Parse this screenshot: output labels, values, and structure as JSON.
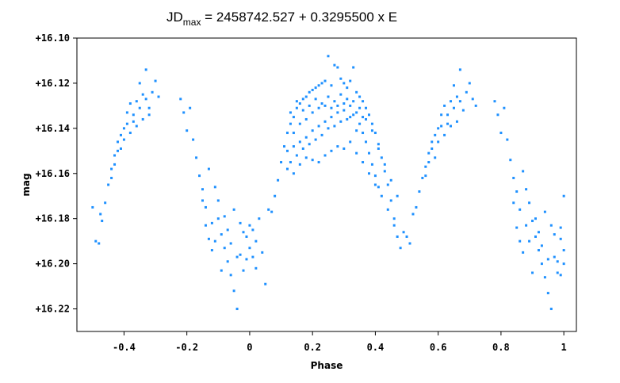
{
  "chart_data": {
    "type": "scatter",
    "title_prefix": "JD",
    "title_subscript": "max",
    "title_rest": " = 2458742.527 + 0.3295500 x E",
    "xlabel": "Phase",
    "ylabel": "mag",
    "xlim": [
      -0.55,
      1.04
    ],
    "ylim": [
      16.23,
      16.1
    ],
    "y_inverted": true,
    "grid": false,
    "point_color": "#1e90ff",
    "x_ticks": [
      {
        "value": -0.4,
        "label": "-0.4"
      },
      {
        "value": -0.2,
        "label": "-0.2"
      },
      {
        "value": 0,
        "label": "0"
      },
      {
        "value": 0.2,
        "label": "0.2"
      },
      {
        "value": 0.4,
        "label": "0.4"
      },
      {
        "value": 0.6,
        "label": "0.6"
      },
      {
        "value": 0.8,
        "label": "0.8"
      },
      {
        "value": 1,
        "label": "1"
      }
    ],
    "y_ticks": [
      {
        "value": 16.1,
        "label": "+16.10"
      },
      {
        "value": 16.12,
        "label": "+16.12"
      },
      {
        "value": 16.14,
        "label": "+16.14"
      },
      {
        "value": 16.16,
        "label": "+16.16"
      },
      {
        "value": 16.18,
        "label": "+16.18"
      },
      {
        "value": 16.2,
        "label": "+16.20"
      },
      {
        "value": 16.22,
        "label": "+16.22"
      }
    ],
    "series": [
      {
        "points": [
          [
            -0.5,
            16.175
          ],
          [
            -0.49,
            16.19
          ],
          [
            -0.48,
            16.191
          ],
          [
            -0.475,
            16.178
          ],
          [
            -0.47,
            16.181
          ],
          [
            -0.46,
            16.173
          ],
          [
            -0.45,
            16.165
          ],
          [
            -0.44,
            16.158
          ],
          [
            -0.43,
            16.152
          ],
          [
            -0.42,
            16.146
          ],
          [
            -0.41,
            16.149
          ],
          [
            -0.4,
            16.14
          ],
          [
            -0.39,
            16.133
          ],
          [
            -0.38,
            16.129
          ],
          [
            -0.37,
            16.137
          ],
          [
            -0.36,
            16.128
          ],
          [
            -0.35,
            16.12
          ],
          [
            -0.34,
            16.125
          ],
          [
            -0.33,
            16.114
          ],
          [
            -0.32,
            16.131
          ],
          [
            -0.31,
            16.124
          ],
          [
            -0.3,
            16.119
          ],
          [
            -0.29,
            16.126
          ],
          [
            -0.44,
            16.162
          ],
          [
            -0.43,
            16.156
          ],
          [
            -0.42,
            16.15
          ],
          [
            -0.41,
            16.143
          ],
          [
            -0.4,
            16.145
          ],
          [
            -0.39,
            16.138
          ],
          [
            -0.38,
            16.142
          ],
          [
            -0.37,
            16.134
          ],
          [
            -0.36,
            16.139
          ],
          [
            -0.35,
            16.131
          ],
          [
            -0.34,
            16.136
          ],
          [
            -0.33,
            16.127
          ],
          [
            -0.32,
            16.134
          ],
          [
            -0.22,
            16.127
          ],
          [
            -0.21,
            16.133
          ],
          [
            -0.2,
            16.141
          ],
          [
            -0.19,
            16.131
          ],
          [
            -0.18,
            16.145
          ],
          [
            -0.17,
            16.153
          ],
          [
            -0.16,
            16.161
          ],
          [
            -0.15,
            16.167
          ],
          [
            -0.14,
            16.175
          ],
          [
            -0.13,
            16.158
          ],
          [
            -0.12,
            16.182
          ],
          [
            -0.11,
            16.19
          ],
          [
            -0.1,
            16.18
          ],
          [
            -0.09,
            16.187
          ],
          [
            -0.08,
            16.193
          ],
          [
            -0.07,
            16.199
          ],
          [
            -0.06,
            16.205
          ],
          [
            -0.05,
            16.212
          ],
          [
            -0.04,
            16.22
          ],
          [
            -0.03,
            16.196
          ],
          [
            -0.02,
            16.203
          ],
          [
            -0.01,
            16.188
          ],
          [
            0.0,
            16.193
          ],
          [
            0.01,
            16.185
          ],
          [
            0.02,
            16.19
          ],
          [
            0.03,
            16.18
          ],
          [
            0.04,
            16.195
          ],
          [
            0.05,
            16.209
          ],
          [
            0.06,
            16.176
          ],
          [
            0.07,
            16.177
          ],
          [
            -0.15,
            16.172
          ],
          [
            -0.14,
            16.183
          ],
          [
            -0.13,
            16.189
          ],
          [
            -0.12,
            16.194
          ],
          [
            -0.11,
            16.166
          ],
          [
            -0.1,
            16.172
          ],
          [
            -0.09,
            16.203
          ],
          [
            -0.08,
            16.179
          ],
          [
            -0.07,
            16.185
          ],
          [
            -0.06,
            16.191
          ],
          [
            -0.05,
            16.176
          ],
          [
            -0.04,
            16.197
          ],
          [
            -0.03,
            16.182
          ],
          [
            -0.02,
            16.186
          ],
          [
            -0.01,
            16.198
          ],
          [
            0.0,
            16.183
          ],
          [
            0.01,
            16.197
          ],
          [
            0.02,
            16.202
          ],
          [
            0.08,
            16.17
          ],
          [
            0.09,
            16.163
          ],
          [
            0.1,
            16.155
          ],
          [
            0.11,
            16.148
          ],
          [
            0.12,
            16.142
          ],
          [
            0.13,
            16.138
          ],
          [
            0.14,
            16.135
          ],
          [
            0.15,
            16.131
          ],
          [
            0.16,
            16.129
          ],
          [
            0.17,
            16.127
          ],
          [
            0.18,
            16.126
          ],
          [
            0.19,
            16.124
          ],
          [
            0.2,
            16.123
          ],
          [
            0.21,
            16.122
          ],
          [
            0.22,
            16.121
          ],
          [
            0.23,
            16.12
          ],
          [
            0.24,
            16.119
          ],
          [
            0.25,
            16.108
          ],
          [
            0.26,
            16.121
          ],
          [
            0.27,
            16.112
          ],
          [
            0.28,
            16.113
          ],
          [
            0.29,
            16.118
          ],
          [
            0.3,
            16.12
          ],
          [
            0.31,
            16.122
          ],
          [
            0.32,
            16.119
          ],
          [
            0.33,
            16.113
          ],
          [
            0.34,
            16.124
          ],
          [
            0.35,
            16.126
          ],
          [
            0.36,
            16.128
          ],
          [
            0.37,
            16.131
          ],
          [
            0.38,
            16.134
          ],
          [
            0.39,
            16.138
          ],
          [
            0.4,
            16.142
          ],
          [
            0.41,
            16.147
          ],
          [
            0.42,
            16.153
          ],
          [
            0.43,
            16.159
          ],
          [
            0.44,
            16.165
          ],
          [
            0.45,
            16.172
          ],
          [
            0.46,
            16.18
          ],
          [
            0.47,
            16.188
          ],
          [
            0.48,
            16.193
          ],
          [
            0.49,
            16.186
          ],
          [
            0.5,
            16.188
          ],
          [
            0.51,
            16.191
          ],
          [
            0.52,
            16.178
          ],
          [
            0.53,
            16.175
          ],
          [
            0.54,
            16.168
          ],
          [
            0.12,
            16.15
          ],
          [
            0.13,
            16.155
          ],
          [
            0.14,
            16.148
          ],
          [
            0.15,
            16.152
          ],
          [
            0.16,
            16.146
          ],
          [
            0.17,
            16.149
          ],
          [
            0.18,
            16.144
          ],
          [
            0.19,
            16.147
          ],
          [
            0.2,
            16.141
          ],
          [
            0.21,
            16.145
          ],
          [
            0.22,
            16.139
          ],
          [
            0.23,
            16.143
          ],
          [
            0.24,
            16.137
          ],
          [
            0.25,
            16.14
          ],
          [
            0.26,
            16.135
          ],
          [
            0.27,
            16.139
          ],
          [
            0.28,
            16.133
          ],
          [
            0.29,
            16.137
          ],
          [
            0.3,
            16.132
          ],
          [
            0.31,
            16.136
          ],
          [
            0.32,
            16.13
          ],
          [
            0.33,
            16.134
          ],
          [
            0.34,
            16.133
          ],
          [
            0.35,
            16.138
          ],
          [
            0.36,
            16.142
          ],
          [
            0.37,
            16.146
          ],
          [
            0.38,
            16.151
          ],
          [
            0.39,
            16.156
          ],
          [
            0.4,
            16.161
          ],
          [
            0.41,
            16.166
          ],
          [
            0.12,
            16.158
          ],
          [
            0.14,
            16.16
          ],
          [
            0.16,
            16.156
          ],
          [
            0.18,
            16.153
          ],
          [
            0.2,
            16.154
          ],
          [
            0.22,
            16.155
          ],
          [
            0.24,
            16.152
          ],
          [
            0.26,
            16.15
          ],
          [
            0.28,
            16.148
          ],
          [
            0.3,
            16.149
          ],
          [
            0.32,
            16.146
          ],
          [
            0.34,
            16.151
          ],
          [
            0.36,
            16.155
          ],
          [
            0.38,
            16.16
          ],
          [
            0.4,
            16.165
          ],
          [
            0.42,
            16.17
          ],
          [
            0.44,
            16.176
          ],
          [
            0.46,
            16.183
          ],
          [
            0.13,
            16.133
          ],
          [
            0.15,
            16.128
          ],
          [
            0.17,
            16.132
          ],
          [
            0.19,
            16.13
          ],
          [
            0.21,
            16.127
          ],
          [
            0.23,
            16.129
          ],
          [
            0.25,
            16.126
          ],
          [
            0.27,
            16.128
          ],
          [
            0.29,
            16.125
          ],
          [
            0.31,
            16.127
          ],
          [
            0.33,
            16.128
          ],
          [
            0.35,
            16.131
          ],
          [
            0.37,
            16.136
          ],
          [
            0.39,
            16.141
          ],
          [
            0.41,
            16.149
          ],
          [
            0.43,
            16.156
          ],
          [
            0.45,
            16.163
          ],
          [
            0.47,
            16.17
          ],
          [
            0.14,
            16.142
          ],
          [
            0.16,
            16.138
          ],
          [
            0.18,
            16.136
          ],
          [
            0.2,
            16.133
          ],
          [
            0.22,
            16.131
          ],
          [
            0.24,
            16.13
          ],
          [
            0.26,
            16.131
          ],
          [
            0.28,
            16.13
          ],
          [
            0.3,
            16.129
          ],
          [
            0.32,
            16.135
          ],
          [
            0.34,
            16.141
          ],
          [
            0.36,
            16.135
          ],
          [
            0.55,
            16.162
          ],
          [
            0.56,
            16.157
          ],
          [
            0.57,
            16.151
          ],
          [
            0.58,
            16.146
          ],
          [
            0.59,
            16.153
          ],
          [
            0.6,
            16.14
          ],
          [
            0.61,
            16.134
          ],
          [
            0.62,
            16.13
          ],
          [
            0.63,
            16.138
          ],
          [
            0.64,
            16.128
          ],
          [
            0.65,
            16.121
          ],
          [
            0.66,
            16.126
          ],
          [
            0.67,
            16.114
          ],
          [
            0.68,
            16.132
          ],
          [
            0.69,
            16.124
          ],
          [
            0.7,
            16.12
          ],
          [
            0.71,
            16.127
          ],
          [
            0.72,
            16.13
          ],
          [
            0.56,
            16.161
          ],
          [
            0.57,
            16.155
          ],
          [
            0.58,
            16.149
          ],
          [
            0.59,
            16.143
          ],
          [
            0.6,
            16.146
          ],
          [
            0.61,
            16.139
          ],
          [
            0.62,
            16.143
          ],
          [
            0.63,
            16.134
          ],
          [
            0.64,
            16.139
          ],
          [
            0.65,
            16.131
          ],
          [
            0.66,
            16.137
          ],
          [
            0.67,
            16.128
          ],
          [
            0.78,
            16.128
          ],
          [
            0.79,
            16.134
          ],
          [
            0.8,
            16.142
          ],
          [
            0.81,
            16.131
          ],
          [
            0.82,
            16.145
          ],
          [
            0.83,
            16.154
          ],
          [
            0.84,
            16.162
          ],
          [
            0.85,
            16.168
          ],
          [
            0.86,
            16.176
          ],
          [
            0.87,
            16.159
          ],
          [
            0.88,
            16.183
          ],
          [
            0.89,
            16.19
          ],
          [
            0.9,
            16.181
          ],
          [
            0.91,
            16.188
          ],
          [
            0.92,
            16.194
          ],
          [
            0.93,
            16.2
          ],
          [
            0.94,
            16.206
          ],
          [
            0.95,
            16.213
          ],
          [
            0.96,
            16.22
          ],
          [
            0.97,
            16.197
          ],
          [
            0.98,
            16.204
          ],
          [
            0.99,
            16.189
          ],
          [
            1.0,
            16.194
          ],
          [
            1.0,
            16.17
          ],
          [
            0.84,
            16.173
          ],
          [
            0.85,
            16.184
          ],
          [
            0.86,
            16.19
          ],
          [
            0.87,
            16.195
          ],
          [
            0.88,
            16.167
          ],
          [
            0.89,
            16.173
          ],
          [
            0.9,
            16.204
          ],
          [
            0.91,
            16.18
          ],
          [
            0.92,
            16.186
          ],
          [
            0.93,
            16.192
          ],
          [
            0.94,
            16.177
          ],
          [
            0.95,
            16.198
          ],
          [
            0.96,
            16.183
          ],
          [
            0.97,
            16.187
          ],
          [
            0.98,
            16.199
          ],
          [
            0.99,
            16.184
          ],
          [
            1.0,
            16.2
          ],
          [
            0.99,
            16.205
          ]
        ]
      }
    ]
  }
}
